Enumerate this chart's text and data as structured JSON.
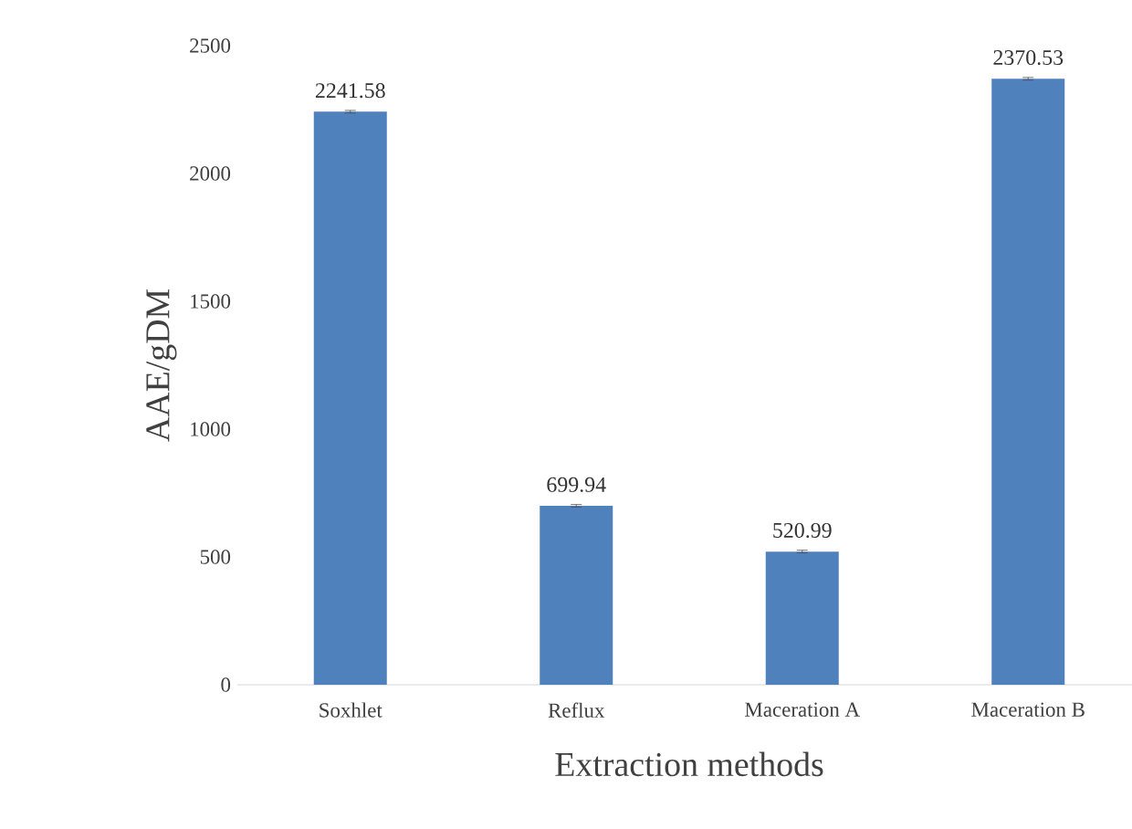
{
  "chart_data": {
    "type": "bar",
    "xlabel": "Extraction methods",
    "ylabel": "AAE/gDM",
    "categories": [
      "Soxhlet",
      "Reflux",
      "Maceration A",
      "Maceration B"
    ],
    "values": [
      2241.58,
      699.94,
      520.99,
      2370.53
    ],
    "errors": [
      5,
      5,
      5,
      5
    ],
    "color": "#4f81bd",
    "data_labels": true,
    "ylim": [
      0,
      2500
    ],
    "yticks": [
      0,
      500,
      1000,
      1500,
      2000,
      2500
    ],
    "grid": false
  }
}
